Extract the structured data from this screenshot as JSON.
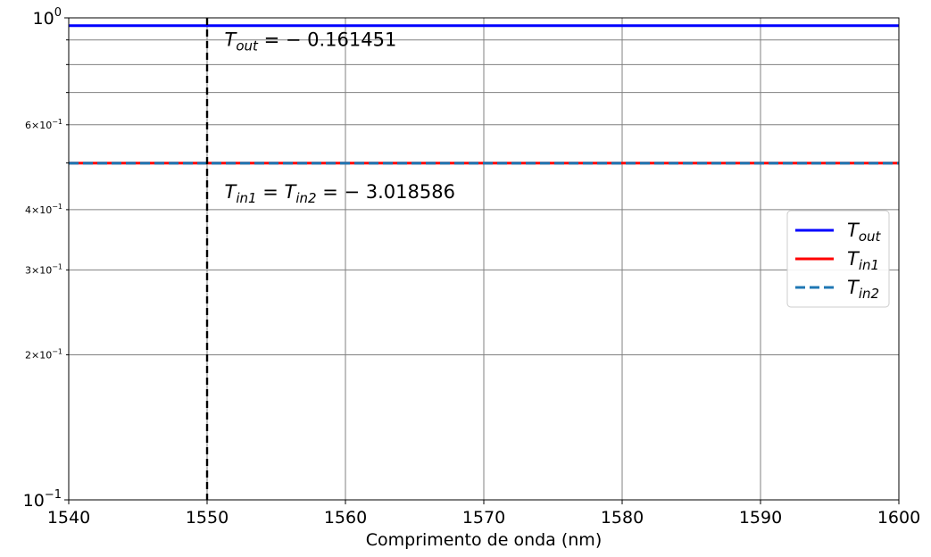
{
  "chart_data": {
    "type": "line",
    "title": "",
    "xlabel": "Comprimento de onda (nm)",
    "ylabel": "",
    "xlim": [
      1540,
      1600
    ],
    "ylim": [
      0.1,
      1.0
    ],
    "yscale": "log",
    "grid": true,
    "x_ticks": [
      "1540",
      "1550",
      "1560",
      "1570",
      "1580",
      "1590",
      "1600"
    ],
    "y_major_ticks": [
      {
        "value": 0.1,
        "base": "10",
        "exp": "−1"
      },
      {
        "value": 1.0,
        "base": "10",
        "exp": "0"
      }
    ],
    "y_minor_labeled": [
      {
        "value": 0.6,
        "mant": "6",
        "base": "10",
        "exp": "−1"
      },
      {
        "value": 0.4,
        "mant": "4",
        "base": "10",
        "exp": "−1"
      },
      {
        "value": 0.3,
        "mant": "3",
        "base": "10",
        "exp": "−1"
      },
      {
        "value": 0.2,
        "mant": "2",
        "base": "10",
        "exp": "−1"
      }
    ],
    "y_minor_unlabeled": [
      0.5,
      0.7,
      0.8,
      0.9
    ],
    "series": [
      {
        "name_main": "T",
        "name_sub": "out",
        "color": "#0000ff",
        "style": "solid",
        "x": [
          1540,
          1600
        ],
        "y": [
          0.9635,
          0.9635
        ]
      },
      {
        "name_main": "T",
        "name_sub": "in1",
        "color": "#ff0000",
        "style": "solid",
        "x": [
          1540,
          1600
        ],
        "y": [
          0.4995,
          0.4995
        ]
      },
      {
        "name_main": "T",
        "name_sub": "in2",
        "color": "#1f77b4",
        "style": "dashed",
        "x": [
          1540,
          1600
        ],
        "y": [
          0.4995,
          0.4995
        ]
      }
    ],
    "vline": {
      "x": 1550,
      "color": "#000000",
      "style": "dashed"
    },
    "annotations": [
      {
        "id": "tout",
        "parts": [
          {
            "t": "T",
            "k": "it"
          },
          {
            "t": "out",
            "k": "sub"
          },
          {
            "t": " = − 0.161451",
            "k": "n"
          }
        ],
        "x": 1551,
        "y": 0.9
      },
      {
        "id": "tin",
        "parts": [
          {
            "t": "T",
            "k": "it"
          },
          {
            "t": "in1",
            "k": "sub"
          },
          {
            "t": " = ",
            "k": "n"
          },
          {
            "t": "T",
            "k": "it"
          },
          {
            "t": "in2",
            "k": "sub"
          },
          {
            "t": " = − 3.018586",
            "k": "n"
          }
        ],
        "x": 1551,
        "y": 0.435
      }
    ],
    "legend": {
      "placement": "center-right"
    }
  }
}
